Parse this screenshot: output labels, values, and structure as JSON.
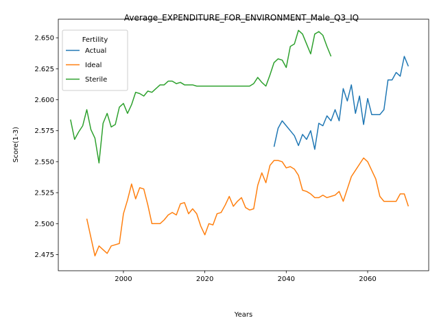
{
  "chart_data": {
    "type": "line",
    "title": "Average_EXPENDITURE_FOR_ENVIRONMENT_Male_Q3_IQ",
    "xlabel": "Years",
    "ylabel": "Score(1-3)",
    "xlim": [
      1984,
      2075
    ],
    "ylim": [
      2.462,
      2.665
    ],
    "xticks": [
      2000,
      2020,
      2040,
      2060
    ],
    "yticks": [
      2.475,
      2.5,
      2.525,
      2.55,
      2.575,
      2.6,
      2.625,
      2.65
    ],
    "ytick_labels": [
      "2.475",
      "2.500",
      "2.525",
      "2.550",
      "2.575",
      "2.600",
      "2.625",
      "2.650"
    ],
    "grid": false,
    "legend": {
      "title": "Fertility",
      "position": "top-left"
    },
    "series": [
      {
        "name": "Actual",
        "color": "#1f77b4",
        "x": [
          2037,
          2038,
          2039,
          2040,
          2041,
          2042,
          2043,
          2044,
          2045,
          2046,
          2047,
          2048,
          2049,
          2050,
          2051,
          2052,
          2053,
          2054,
          2055,
          2056,
          2057,
          2058,
          2059,
          2060,
          2061,
          2062,
          2063,
          2064,
          2065,
          2066,
          2067,
          2068,
          2069,
          2070
        ],
        "y": [
          2.562,
          2.577,
          2.583,
          2.579,
          2.575,
          2.571,
          2.563,
          2.572,
          2.568,
          2.575,
          2.56,
          2.581,
          2.579,
          2.587,
          2.583,
          2.592,
          2.583,
          2.609,
          2.599,
          2.612,
          2.589,
          2.603,
          2.58,
          2.601,
          2.588,
          2.588,
          2.588,
          2.592,
          2.616,
          2.616,
          2.622,
          2.619,
          2.635,
          2.627
        ]
      },
      {
        "name": "Ideal",
        "color": "#ff7f0e",
        "x": [
          1991,
          1992,
          1993,
          1994,
          1995,
          1996,
          1997,
          1998,
          1999,
          2000,
          2001,
          2002,
          2003,
          2004,
          2005,
          2006,
          2007,
          2008,
          2009,
          2010,
          2011,
          2012,
          2013,
          2014,
          2015,
          2016,
          2017,
          2018,
          2019,
          2020,
          2021,
          2022,
          2023,
          2024,
          2025,
          2026,
          2027,
          2028,
          2029,
          2030,
          2031,
          2032,
          2033,
          2034,
          2035,
          2036,
          2037,
          2038,
          2039,
          2040,
          2041,
          2042,
          2043,
          2044,
          2045,
          2046,
          2047,
          2048,
          2049,
          2050,
          2051,
          2052,
          2053,
          2054,
          2055,
          2056,
          2057,
          2058,
          2059,
          2060,
          2061,
          2062,
          2063,
          2064,
          2065,
          2066,
          2067,
          2068,
          2069,
          2070
        ],
        "y": [
          2.504,
          2.489,
          2.474,
          2.482,
          2.479,
          2.476,
          2.482,
          2.483,
          2.484,
          2.508,
          2.519,
          2.532,
          2.52,
          2.529,
          2.528,
          2.515,
          2.5,
          2.5,
          2.5,
          2.503,
          2.507,
          2.509,
          2.507,
          2.516,
          2.517,
          2.508,
          2.512,
          2.508,
          2.498,
          2.491,
          2.5,
          2.499,
          2.508,
          2.509,
          2.515,
          2.522,
          2.514,
          2.518,
          2.521,
          2.513,
          2.511,
          2.512,
          2.531,
          2.541,
          2.533,
          2.547,
          2.551,
          2.551,
          2.55,
          2.545,
          2.546,
          2.544,
          2.539,
          2.527,
          2.526,
          2.524,
          2.521,
          2.521,
          2.523,
          2.521,
          2.522,
          2.523,
          2.526,
          2.518,
          2.528,
          2.538,
          2.543,
          2.548,
          2.553,
          2.55,
          2.543,
          2.536,
          2.522,
          2.518,
          2.518,
          2.518,
          2.518,
          2.524,
          2.524,
          2.514
        ]
      },
      {
        "name": "Sterile",
        "color": "#2ca02c",
        "x": [
          1987,
          1988,
          1989,
          1990,
          1991,
          1992,
          1993,
          1994,
          1995,
          1996,
          1997,
          1998,
          1999,
          2000,
          2001,
          2002,
          2003,
          2004,
          2005,
          2006,
          2007,
          2008,
          2009,
          2010,
          2011,
          2012,
          2013,
          2014,
          2015,
          2016,
          2017,
          2018,
          2019,
          2020,
          2021,
          2022,
          2023,
          2024,
          2025,
          2026,
          2027,
          2028,
          2029,
          2030,
          2031,
          2032,
          2033,
          2034,
          2035,
          2036,
          2037,
          2038,
          2039,
          2040,
          2041,
          2042,
          2043,
          2044,
          2045,
          2046,
          2047,
          2048,
          2049,
          2050,
          2051
        ],
        "y": [
          2.584,
          2.568,
          2.574,
          2.579,
          2.592,
          2.576,
          2.569,
          2.549,
          2.581,
          2.589,
          2.578,
          2.58,
          2.594,
          2.597,
          2.589,
          2.596,
          2.606,
          2.605,
          2.603,
          2.607,
          2.606,
          2.609,
          2.612,
          2.612,
          2.615,
          2.615,
          2.613,
          2.614,
          2.612,
          2.612,
          2.612,
          2.611,
          2.611,
          2.611,
          2.611,
          2.611,
          2.611,
          2.611,
          2.611,
          2.611,
          2.611,
          2.611,
          2.611,
          2.611,
          2.611,
          2.613,
          2.618,
          2.614,
          2.611,
          2.62,
          2.63,
          2.633,
          2.632,
          2.626,
          2.643,
          2.645,
          2.656,
          2.653,
          2.645,
          2.637,
          2.653,
          2.655,
          2.652,
          2.643,
          2.635
        ]
      }
    ]
  }
}
